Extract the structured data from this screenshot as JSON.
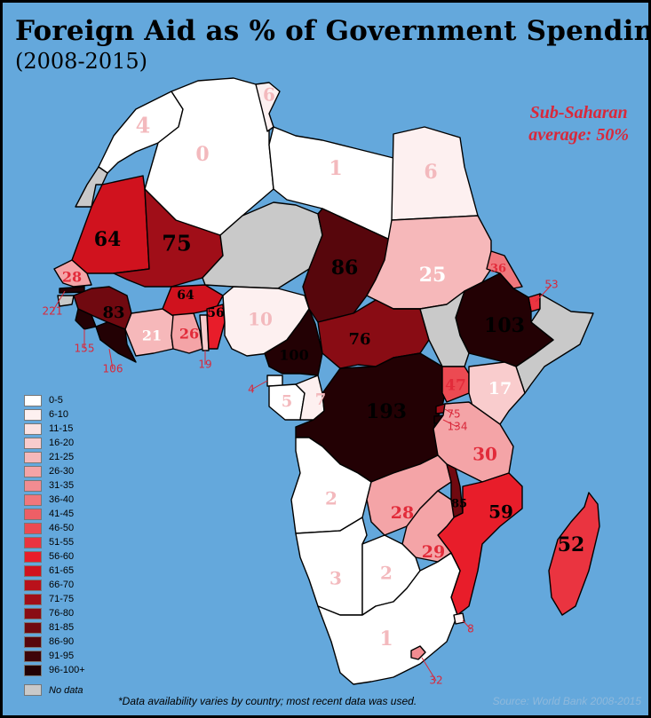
{
  "title": "Foreign Aid as % of Government Spending",
  "subtitle": "(2008-2015)",
  "average_note": [
    "Sub-Saharan",
    "average: 50%"
  ],
  "footnote": "*Data availability varies by country; most recent data was used.",
  "source": "Source: World Bank 2008-2015",
  "legend": {
    "bins": [
      {
        "label": "0-5",
        "color": "#ffffff"
      },
      {
        "label": "6-10",
        "color": "#fdf0f0"
      },
      {
        "label": "11-15",
        "color": "#fbe2e2"
      },
      {
        "label": "16-20",
        "color": "#f9cccd"
      },
      {
        "label": "21-25",
        "color": "#f6b8ba"
      },
      {
        "label": "26-30",
        "color": "#f4a4a7"
      },
      {
        "label": "31-35",
        "color": "#f28c91"
      },
      {
        "label": "36-40",
        "color": "#f0777c"
      },
      {
        "label": "41-45",
        "color": "#ee5f66"
      },
      {
        "label": "46-50",
        "color": "#ec4a52"
      },
      {
        "label": "51-55",
        "color": "#ea3440"
      },
      {
        "label": "56-60",
        "color": "#e81d2a"
      },
      {
        "label": "61-65",
        "color": "#d0121e"
      },
      {
        "label": "66-70",
        "color": "#b9111b"
      },
      {
        "label": "71-75",
        "color": "#a00e18"
      },
      {
        "label": "76-80",
        "color": "#890c14"
      },
      {
        "label": "81-85",
        "color": "#700910"
      },
      {
        "label": "86-90",
        "color": "#57060c"
      },
      {
        "label": "91-95",
        "color": "#3e0408"
      },
      {
        "label": "96-100+",
        "color": "#230104"
      }
    ],
    "no_data": {
      "label": "No data",
      "color": "#c9c9c9"
    }
  },
  "countries": [
    {
      "id": "morocco",
      "value": "4",
      "color": "#ffffff"
    },
    {
      "id": "western-sahara",
      "value": "",
      "color": "#c9c9c9"
    },
    {
      "id": "algeria",
      "value": "0",
      "color": "#ffffff"
    },
    {
      "id": "tunisia",
      "value": "6",
      "color": "#fdf0f0"
    },
    {
      "id": "libya",
      "value": "1",
      "color": "#ffffff"
    },
    {
      "id": "egypt",
      "value": "6",
      "color": "#fdf0f0"
    },
    {
      "id": "mauritania",
      "value": "64",
      "color": "#d0121e"
    },
    {
      "id": "mali",
      "value": "75",
      "color": "#a00e18"
    },
    {
      "id": "niger",
      "value": "",
      "color": "#c9c9c9"
    },
    {
      "id": "chad",
      "value": "86",
      "color": "#57060c"
    },
    {
      "id": "sudan",
      "value": "25",
      "color": "#f6b8ba"
    },
    {
      "id": "eritrea",
      "value": "36",
      "color": "#f0777c"
    },
    {
      "id": "djibouti",
      "value": "53",
      "color": "#ea3440"
    },
    {
      "id": "somalia",
      "value": "",
      "color": "#c9c9c9"
    },
    {
      "id": "ethiopia",
      "value": "103",
      "color": "#230104"
    },
    {
      "id": "senegal",
      "value": "28",
      "color": "#f4a4a7"
    },
    {
      "id": "gambia",
      "value": "221",
      "color": "#230104"
    },
    {
      "id": "guinea-bissau",
      "value": "",
      "color": "#c9c9c9"
    },
    {
      "id": "guinea",
      "value": "83",
      "color": "#700910"
    },
    {
      "id": "burkina-faso",
      "value": "64",
      "color": "#d0121e"
    },
    {
      "id": "sierra-leone",
      "value": "155",
      "color": "#230104"
    },
    {
      "id": "liberia",
      "value": "106",
      "color": "#230104"
    },
    {
      "id": "cote-divoire",
      "value": "21",
      "color": "#f6b8ba"
    },
    {
      "id": "ghana",
      "value": "26",
      "color": "#f4a4a7"
    },
    {
      "id": "togo",
      "value": "19",
      "color": "#f9cccd"
    },
    {
      "id": "benin",
      "value": "56",
      "color": "#e81d2a"
    },
    {
      "id": "nigeria",
      "value": "10",
      "color": "#fdf0f0"
    },
    {
      "id": "cameroon",
      "value": "100",
      "color": "#230104"
    },
    {
      "id": "central-african-rep",
      "value": "76",
      "color": "#890c14"
    },
    {
      "id": "south-sudan",
      "value": "",
      "color": "#c9c9c9"
    },
    {
      "id": "equatorial-guinea",
      "value": "4",
      "color": "#ffffff"
    },
    {
      "id": "gabon",
      "value": "5",
      "color": "#ffffff"
    },
    {
      "id": "congo",
      "value": "7",
      "color": "#fdf0f0"
    },
    {
      "id": "dr-congo",
      "value": "193",
      "color": "#230104"
    },
    {
      "id": "uganda",
      "value": "47",
      "color": "#ec4a52"
    },
    {
      "id": "kenya",
      "value": "17",
      "color": "#f9cccd"
    },
    {
      "id": "rwanda",
      "value": "75",
      "color": "#a00e18"
    },
    {
      "id": "burundi",
      "value": "134",
      "color": "#230104"
    },
    {
      "id": "tanzania",
      "value": "30",
      "color": "#f4a4a7"
    },
    {
      "id": "angola",
      "value": "2",
      "color": "#ffffff"
    },
    {
      "id": "zambia",
      "value": "28",
      "color": "#f4a4a7"
    },
    {
      "id": "malawi",
      "value": "85",
      "color": "#700910"
    },
    {
      "id": "mozambique",
      "value": "59",
      "color": "#e81d2a"
    },
    {
      "id": "zimbabwe",
      "value": "29",
      "color": "#f4a4a7"
    },
    {
      "id": "namibia",
      "value": "3",
      "color": "#ffffff"
    },
    {
      "id": "botswana",
      "value": "2",
      "color": "#ffffff"
    },
    {
      "id": "south-africa",
      "value": "1",
      "color": "#ffffff"
    },
    {
      "id": "swaziland",
      "value": "8",
      "color": "#fdf0f0"
    },
    {
      "id": "lesotho",
      "value": "32",
      "color": "#f28c91"
    },
    {
      "id": "madagascar",
      "value": "52",
      "color": "#ea3440"
    }
  ]
}
